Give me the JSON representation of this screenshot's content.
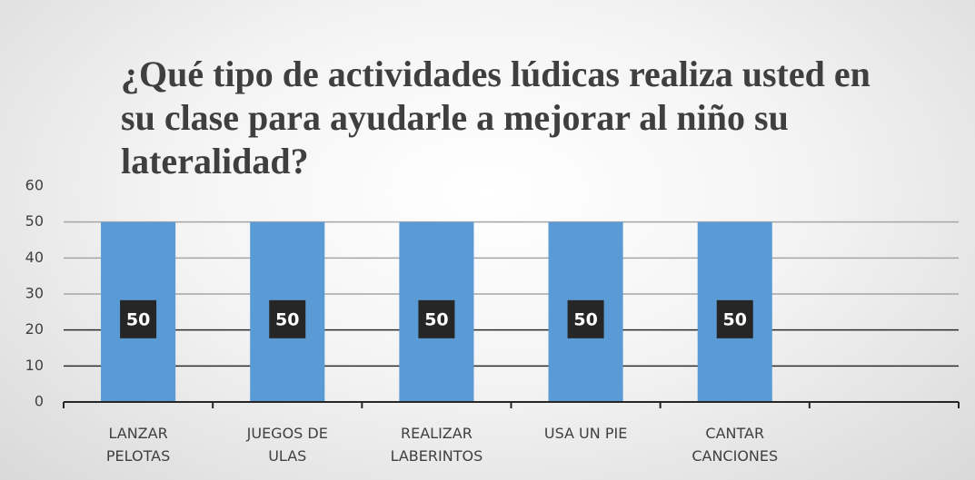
{
  "chart_data": {
    "type": "bar",
    "title": "¿Qué tipo de actividades lúdicas realiza usted en su clase para ayudarle a mejorar al niño su lateralidad?",
    "categories": [
      "LANZAR PELOTAS",
      "JUEGOS DE ULAS",
      "REALIZAR LABERINTOS",
      "USA UN PIE",
      "CANTAR CANCIONES",
      null
    ],
    "values": [
      50,
      50,
      50,
      50,
      50,
      null
    ],
    "color": "#5b9bd5",
    "ylim": [
      0,
      60
    ],
    "yticks": [
      0,
      10,
      20,
      30,
      40,
      50,
      60
    ],
    "grid": true
  }
}
